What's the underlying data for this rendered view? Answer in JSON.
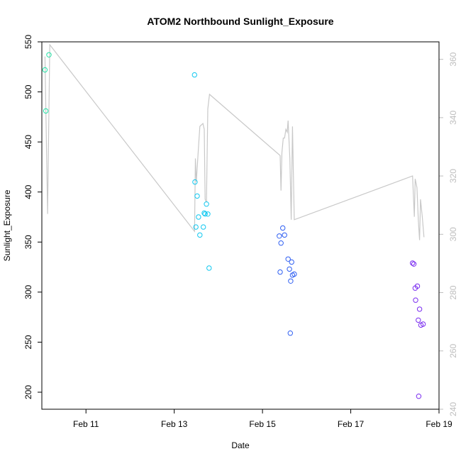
{
  "chart_data": {
    "type": "scatter",
    "title": "ATOM2 Northbound Sunlight_Exposure",
    "xlabel": "Date",
    "ylabel": "Sunlight_Exposure",
    "x_ticks": [
      {
        "value": 11,
        "label": "Feb 11"
      },
      {
        "value": 13,
        "label": "Feb 13"
      },
      {
        "value": 15,
        "label": "Feb 15"
      },
      {
        "value": 17,
        "label": "Feb 17"
      },
      {
        "value": 19,
        "label": "Feb 19"
      }
    ],
    "xlim": [
      10,
      19
    ],
    "ylim": [
      183,
      550
    ],
    "y_ticks": [
      200,
      250,
      300,
      350,
      400,
      450,
      500,
      550
    ],
    "y2lim": [
      240,
      366
    ],
    "y2_ticks": [
      240,
      260,
      280,
      300,
      320,
      340,
      360
    ],
    "grid": false,
    "points_series": {
      "points": [
        {
          "x": 10.07,
          "y": 522,
          "color": "#22e3a6"
        },
        {
          "x": 10.09,
          "y": 481,
          "color": "#22e3a6"
        },
        {
          "x": 10.16,
          "y": 537,
          "color": "#22e3a6"
        },
        {
          "x": 13.46,
          "y": 517,
          "color": "#11c8f0"
        },
        {
          "x": 13.47,
          "y": 410,
          "color": "#11c8f0"
        },
        {
          "x": 13.49,
          "y": 365,
          "color": "#11c8f0"
        },
        {
          "x": 13.52,
          "y": 396,
          "color": "#11c8f0"
        },
        {
          "x": 13.55,
          "y": 375,
          "color": "#11c8f0"
        },
        {
          "x": 13.58,
          "y": 357,
          "color": "#11c8f0"
        },
        {
          "x": 13.66,
          "y": 365,
          "color": "#11c8f0"
        },
        {
          "x": 13.68,
          "y": 379,
          "color": "#11c8f0"
        },
        {
          "x": 13.7,
          "y": 378,
          "color": "#11c8f0"
        },
        {
          "x": 13.73,
          "y": 388,
          "color": "#11c8f0"
        },
        {
          "x": 13.76,
          "y": 378,
          "color": "#11c8f0"
        },
        {
          "x": 13.79,
          "y": 324,
          "color": "#11c8f0"
        },
        {
          "x": 15.38,
          "y": 356,
          "color": "#2f5ff2"
        },
        {
          "x": 15.4,
          "y": 320,
          "color": "#2f5ff2"
        },
        {
          "x": 15.42,
          "y": 349,
          "color": "#2f5ff2"
        },
        {
          "x": 15.46,
          "y": 364,
          "color": "#2f5ff2"
        },
        {
          "x": 15.5,
          "y": 357,
          "color": "#2f5ff2"
        },
        {
          "x": 15.58,
          "y": 333,
          "color": "#2f5ff2"
        },
        {
          "x": 15.61,
          "y": 323,
          "color": "#2f5ff2"
        },
        {
          "x": 15.63,
          "y": 259,
          "color": "#2f5ff2"
        },
        {
          "x": 15.64,
          "y": 311,
          "color": "#2f5ff2"
        },
        {
          "x": 15.66,
          "y": 330,
          "color": "#2f5ff2"
        },
        {
          "x": 15.68,
          "y": 317,
          "color": "#2f5ff2"
        },
        {
          "x": 15.72,
          "y": 318,
          "color": "#2f5ff2"
        },
        {
          "x": 18.4,
          "y": 329,
          "color": "#7a2cf0"
        },
        {
          "x": 18.43,
          "y": 328,
          "color": "#7a2cf0"
        },
        {
          "x": 18.46,
          "y": 304,
          "color": "#7a2cf0"
        },
        {
          "x": 18.47,
          "y": 292,
          "color": "#7a2cf0"
        },
        {
          "x": 18.51,
          "y": 306,
          "color": "#7a2cf0"
        },
        {
          "x": 18.53,
          "y": 272,
          "color": "#7a2cf0"
        },
        {
          "x": 18.54,
          "y": 196,
          "color": "#7a2cf0"
        },
        {
          "x": 18.56,
          "y": 283,
          "color": "#7a2cf0"
        },
        {
          "x": 18.59,
          "y": 267,
          "color": "#7a2cf0"
        },
        {
          "x": 18.64,
          "y": 268,
          "color": "#7a2cf0"
        }
      ]
    },
    "line_series": {
      "axis": "right",
      "color": "#c8c8c8",
      "points": [
        [
          10.07,
          361
        ],
        [
          10.13,
          307
        ],
        [
          10.18,
          365
        ],
        [
          13.46,
          301
        ],
        [
          13.48,
          326
        ],
        [
          13.5,
          318
        ],
        [
          13.55,
          330
        ],
        [
          13.58,
          337
        ],
        [
          13.65,
          338
        ],
        [
          13.68,
          336
        ],
        [
          13.7,
          312
        ],
        [
          13.73,
          311
        ],
        [
          13.76,
          343
        ],
        [
          13.8,
          348
        ],
        [
          15.4,
          327
        ],
        [
          15.42,
          315
        ],
        [
          15.44,
          328
        ],
        [
          15.47,
          333
        ],
        [
          15.5,
          333
        ],
        [
          15.53,
          336
        ],
        [
          15.56,
          335
        ],
        [
          15.58,
          339
        ],
        [
          15.62,
          326
        ],
        [
          15.65,
          305
        ],
        [
          15.68,
          337
        ],
        [
          15.72,
          305
        ],
        [
          18.4,
          320
        ],
        [
          18.44,
          306
        ],
        [
          18.46,
          319
        ],
        [
          18.5,
          316
        ],
        [
          18.53,
          305
        ],
        [
          18.56,
          298
        ],
        [
          18.58,
          312
        ],
        [
          18.62,
          306
        ],
        [
          18.66,
          299
        ]
      ]
    }
  }
}
